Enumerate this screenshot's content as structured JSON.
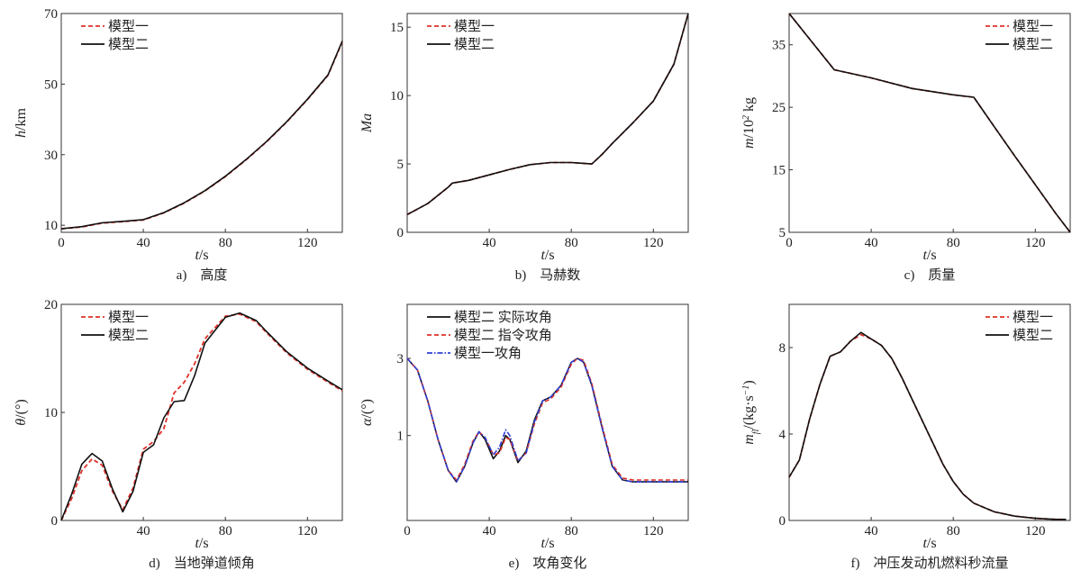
{
  "chart_data": [
    {
      "id": "a",
      "type": "line",
      "caption": "a)　高度",
      "xlabel": "t/s",
      "ylabel": "h/km",
      "xlim": [
        0,
        137
      ],
      "ylim": [
        8,
        70
      ],
      "xticks": [
        0,
        40,
        80,
        120
      ],
      "yticks": [
        10,
        30,
        50,
        70
      ],
      "legend": "top-left",
      "series": [
        {
          "name": "模型一",
          "color": "#e0302a",
          "dash": "5,3",
          "x": [
            0,
            10,
            20,
            30,
            40,
            50,
            60,
            70,
            80,
            90,
            100,
            110,
            120,
            130,
            137
          ],
          "y": [
            9.0,
            9.5,
            10.6,
            11.0,
            11.5,
            13.5,
            16.3,
            19.7,
            23.8,
            28.5,
            33.6,
            39.3,
            45.6,
            52.5,
            62.0
          ]
        },
        {
          "name": "模型二",
          "color": "#111111",
          "dash": "",
          "x": [
            0,
            10,
            20,
            30,
            40,
            50,
            60,
            70,
            80,
            90,
            100,
            110,
            120,
            130,
            137
          ],
          "y": [
            9.0,
            9.6,
            10.7,
            11.1,
            11.6,
            13.6,
            16.4,
            19.8,
            23.9,
            28.6,
            33.7,
            39.4,
            45.7,
            52.6,
            62.2
          ]
        }
      ]
    },
    {
      "id": "b",
      "type": "line",
      "caption": "b)　马赫数",
      "xlabel": "t/s",
      "ylabel": "Ma",
      "xlim": [
        0,
        137
      ],
      "ylim": [
        0,
        16
      ],
      "xticks": [
        40,
        80,
        120
      ],
      "yticks": [
        0,
        5,
        10,
        15
      ],
      "legend": "top-left",
      "series": [
        {
          "name": "模型一",
          "color": "#e0302a",
          "dash": "5,3",
          "x": [
            0,
            10,
            20,
            22,
            30,
            40,
            50,
            60,
            70,
            80,
            90,
            95,
            100,
            110,
            120,
            130,
            137
          ],
          "y": [
            1.3,
            2.1,
            3.3,
            3.6,
            3.8,
            4.2,
            4.6,
            4.95,
            5.1,
            5.1,
            5.0,
            5.7,
            6.5,
            8.0,
            9.6,
            12.3,
            16.0
          ]
        },
        {
          "name": "模型二",
          "color": "#111111",
          "dash": "",
          "x": [
            0,
            10,
            20,
            22,
            30,
            40,
            50,
            60,
            70,
            80,
            90,
            95,
            100,
            110,
            120,
            130,
            137
          ],
          "y": [
            1.3,
            2.1,
            3.3,
            3.6,
            3.8,
            4.2,
            4.6,
            4.95,
            5.1,
            5.1,
            5.0,
            5.7,
            6.5,
            8.0,
            9.6,
            12.3,
            16.0
          ]
        }
      ]
    },
    {
      "id": "c",
      "type": "line",
      "caption": "c)　质量",
      "xlabel": "t/s",
      "ylabel": "m/10² kg",
      "xlim": [
        0,
        137
      ],
      "ylim": [
        5,
        40
      ],
      "xticks": [
        0,
        40,
        80,
        120
      ],
      "yticks": [
        5,
        15,
        25,
        35
      ],
      "legend": "top-right",
      "series": [
        {
          "name": "模型一",
          "color": "#e0302a",
          "dash": "5,3",
          "x": [
            0,
            22,
            40,
            60,
            80,
            90,
            100,
            110,
            120,
            130,
            137
          ],
          "y": [
            40.0,
            31.0,
            29.7,
            28.0,
            27.0,
            26.6,
            21.9,
            17.2,
            12.6,
            8.0,
            5.0
          ]
        },
        {
          "name": "模型二",
          "color": "#111111",
          "dash": "",
          "x": [
            0,
            22,
            40,
            60,
            80,
            90,
            100,
            110,
            120,
            130,
            137
          ],
          "y": [
            40.0,
            31.0,
            29.7,
            28.0,
            27.0,
            26.6,
            21.9,
            17.2,
            12.6,
            8.0,
            5.0
          ]
        }
      ]
    },
    {
      "id": "d",
      "type": "line",
      "caption": "d)　当地弹道倾角",
      "xlabel": "t/s",
      "ylabel": "θ/(°)",
      "xlim": [
        0,
        137
      ],
      "ylim": [
        0,
        20
      ],
      "xticks": [
        40,
        80,
        120
      ],
      "yticks": [
        0,
        10,
        20
      ],
      "legend": "top-left",
      "series": [
        {
          "name": "模型一",
          "color": "#e0302a",
          "dash": "5,3",
          "x": [
            0,
            5,
            10,
            15,
            20,
            25,
            30,
            35,
            40,
            45,
            50,
            55,
            60,
            65,
            70,
            80,
            87,
            95,
            100,
            110,
            120,
            130,
            137
          ],
          "y": [
            0,
            2.0,
            4.6,
            5.7,
            5.1,
            2.7,
            1.0,
            3.0,
            6.6,
            7.3,
            8.5,
            11.8,
            12.8,
            14.5,
            16.8,
            18.9,
            19.1,
            18.4,
            17.4,
            15.5,
            14.0,
            12.8,
            12.0
          ]
        },
        {
          "name": "模型二",
          "color": "#111111",
          "dash": "",
          "x": [
            0,
            5,
            10,
            15,
            20,
            25,
            30,
            35,
            40,
            45,
            50,
            55,
            60,
            65,
            70,
            80,
            87,
            95,
            100,
            110,
            120,
            130,
            137
          ],
          "y": [
            0,
            2.4,
            5.2,
            6.2,
            5.5,
            2.9,
            0.8,
            2.7,
            6.3,
            7.0,
            9.5,
            11.0,
            11.1,
            13.4,
            16.4,
            18.8,
            19.2,
            18.5,
            17.5,
            15.6,
            14.1,
            12.9,
            12.1
          ]
        }
      ]
    },
    {
      "id": "e",
      "type": "line",
      "caption": "e)　攻角变化",
      "xlabel": "t/s",
      "ylabel": "α/(°)",
      "xlim": [
        0,
        137
      ],
      "ylim": [
        -1.2,
        4.4
      ],
      "xticks": [
        0,
        40,
        80,
        120
      ],
      "yticks": [
        1,
        3
      ],
      "legend": "top-left",
      "series": [
        {
          "name": "模型二 实际攻角",
          "color": "#111111",
          "dash": "",
          "x": [
            0,
            5,
            10,
            15,
            20,
            24,
            28,
            32,
            35,
            38,
            42,
            45,
            48,
            50,
            54,
            58,
            62,
            66,
            70,
            75,
            80,
            83,
            86,
            90,
            95,
            100,
            105,
            110,
            120,
            130,
            137
          ],
          "y": [
            3.0,
            2.7,
            1.9,
            0.9,
            0.1,
            -0.2,
            0.2,
            0.8,
            1.1,
            0.9,
            0.4,
            0.6,
            1.0,
            0.9,
            0.3,
            0.6,
            1.4,
            1.9,
            2.0,
            2.3,
            2.9,
            3.0,
            2.9,
            2.3,
            1.2,
            0.2,
            -0.15,
            -0.2,
            -0.2,
            -0.2,
            -0.2
          ]
        },
        {
          "name": "模型二 指令攻角",
          "color": "#e0302a",
          "dash": "5,3",
          "x": [
            0,
            5,
            10,
            15,
            20,
            24,
            28,
            32,
            35,
            38,
            42,
            45,
            48,
            50,
            54,
            58,
            62,
            66,
            70,
            75,
            80,
            83,
            86,
            90,
            95,
            100,
            105,
            110,
            120,
            130,
            137
          ],
          "y": [
            3.0,
            2.7,
            1.9,
            0.9,
            0.1,
            -0.15,
            0.25,
            0.85,
            1.1,
            0.95,
            0.5,
            0.55,
            0.95,
            0.9,
            0.35,
            0.55,
            1.3,
            1.85,
            1.95,
            2.25,
            2.85,
            3.0,
            2.95,
            2.35,
            1.25,
            0.25,
            -0.1,
            -0.15,
            -0.15,
            -0.15,
            -0.15
          ]
        },
        {
          "name": "模型一攻角",
          "color": "#2f3fd6",
          "dash": "6,2,1.5,2",
          "x": [
            0,
            5,
            10,
            15,
            20,
            24,
            28,
            32,
            35,
            38,
            42,
            45,
            48,
            50,
            54,
            58,
            62,
            66,
            70,
            75,
            80,
            83,
            86,
            90,
            95,
            100,
            105,
            110,
            120,
            130,
            137
          ],
          "y": [
            3.0,
            2.7,
            1.9,
            0.9,
            0.1,
            -0.2,
            0.2,
            0.8,
            1.1,
            0.95,
            0.5,
            0.7,
            1.15,
            1.0,
            0.35,
            0.55,
            1.35,
            1.9,
            2.0,
            2.3,
            2.9,
            3.0,
            2.9,
            2.3,
            1.2,
            0.2,
            -0.15,
            -0.2,
            -0.2,
            -0.2,
            -0.2
          ]
        }
      ]
    },
    {
      "id": "f",
      "type": "line",
      "caption": "f)　冲压发动机燃料秒流量",
      "xlabel": "t/s",
      "ylabel": "m_fl/(kg·s⁻¹)",
      "xlim": [
        0,
        137
      ],
      "ylim": [
        0,
        10
      ],
      "xticks": [
        40,
        80,
        120
      ],
      "yticks": [
        0,
        4,
        8
      ],
      "legend": "top-right",
      "series": [
        {
          "name": "模型一",
          "color": "#e0302a",
          "dash": "5,3",
          "x": [
            0,
            5,
            10,
            15,
            20,
            25,
            30,
            35,
            40,
            45,
            50,
            55,
            60,
            65,
            70,
            75,
            80,
            85,
            90,
            100,
            110,
            120,
            130,
            135
          ],
          "y": [
            2.0,
            2.8,
            4.7,
            6.3,
            7.6,
            7.8,
            8.3,
            8.6,
            8.4,
            8.1,
            7.5,
            6.6,
            5.6,
            4.6,
            3.6,
            2.6,
            1.8,
            1.2,
            0.8,
            0.4,
            0.2,
            0.1,
            0.05,
            0.05
          ]
        },
        {
          "name": "模型二",
          "color": "#111111",
          "dash": "",
          "x": [
            0,
            5,
            10,
            15,
            20,
            25,
            30,
            35,
            40,
            45,
            50,
            55,
            60,
            65,
            70,
            75,
            80,
            85,
            90,
            100,
            110,
            120,
            130,
            135
          ],
          "y": [
            2.0,
            2.8,
            4.7,
            6.3,
            7.6,
            7.8,
            8.3,
            8.7,
            8.4,
            8.1,
            7.5,
            6.6,
            5.6,
            4.6,
            3.6,
            2.6,
            1.8,
            1.2,
            0.8,
            0.4,
            0.2,
            0.1,
            0.05,
            0.05
          ]
        }
      ]
    }
  ]
}
